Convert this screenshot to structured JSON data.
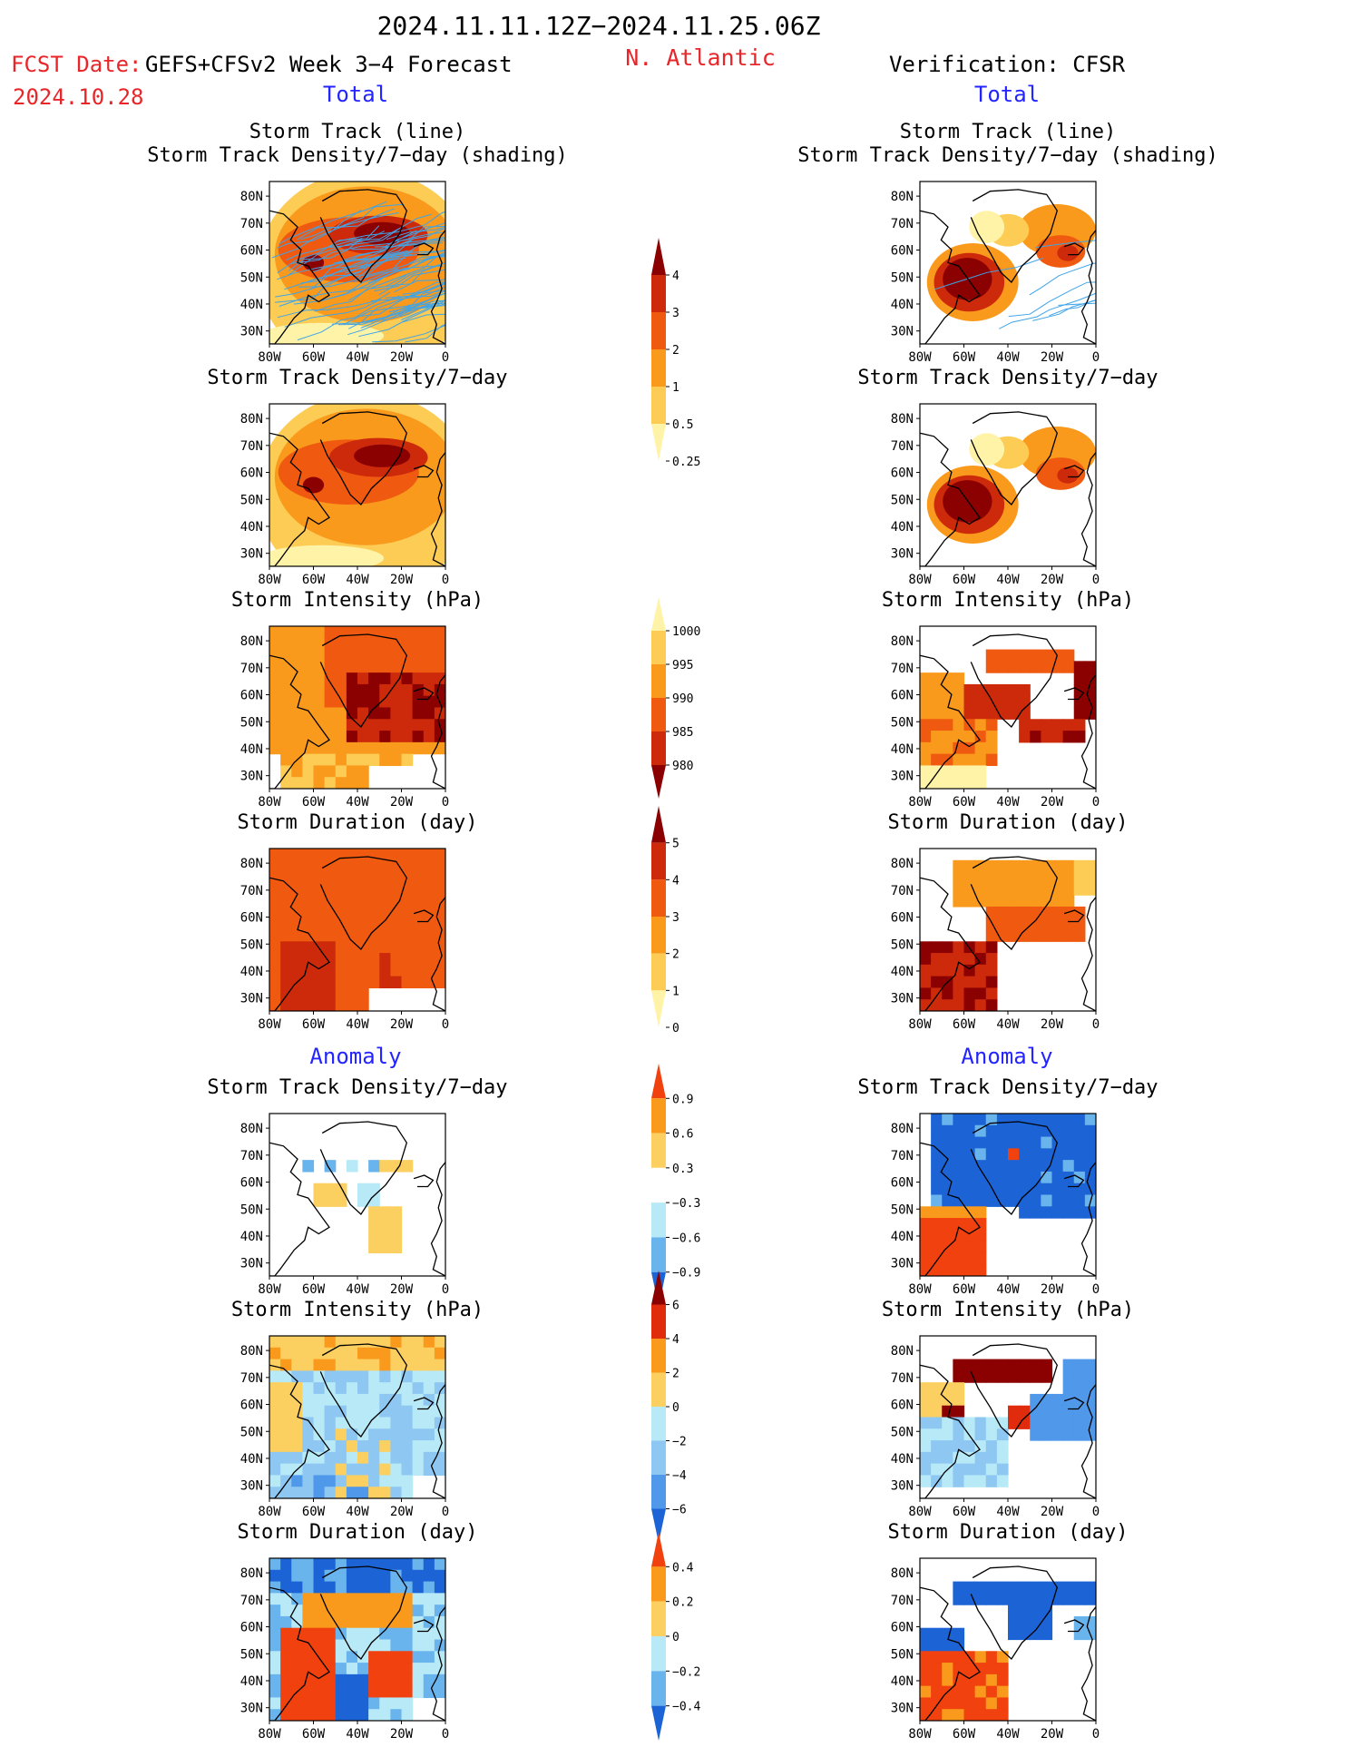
{
  "header": {
    "date_range": "2024.11.11.12Z−2024.11.25.06Z",
    "fcst_prefix": "FCST Date:",
    "fcst_model": "GEFS+CFSv2 Week 3−4 Forecast",
    "fcst_date": "2024.10.28",
    "region": "N. Atlantic",
    "verification": "Verification: CFSR"
  },
  "sections": {
    "total": "Total",
    "anomaly": "Anomaly"
  },
  "panel_titles": {
    "track_line": "Storm Track (line)",
    "track_shading": "Storm Track Density/7−day (shading)",
    "density": "Storm Track Density/7−day",
    "intensity": "Storm Intensity (hPa)",
    "duration": "Storm Duration (day)"
  },
  "map_axes": {
    "lat_labels": [
      "80N",
      "70N",
      "60N",
      "50N",
      "40N",
      "30N"
    ],
    "lon_labels": [
      "80W",
      "60W",
      "40W",
      "20W",
      "0"
    ]
  },
  "colorbars": {
    "density_total": {
      "labels": [
        "4",
        "3",
        "2",
        "1",
        "0.5",
        "0.25"
      ],
      "colors": [
        "#8b0000",
        "#cc2a0a",
        "#f05a10",
        "#f99a1c",
        "#fccc55",
        "#fff3a8"
      ]
    },
    "intensity_total": {
      "labels": [
        "1000",
        "995",
        "990",
        "985",
        "980"
      ],
      "colors": [
        "#fff3a8",
        "#fccc55",
        "#f99a1c",
        "#f05a10",
        "#cc2a0a",
        "#8b0000"
      ]
    },
    "duration_total": {
      "labels": [
        "5",
        "4",
        "3",
        "2",
        "1",
        "0"
      ],
      "colors": [
        "#8b0000",
        "#cc2a0a",
        "#f05a10",
        "#f99a1c",
        "#fccc55",
        "#fff3a8"
      ]
    },
    "density_anom": {
      "labels": [
        "0.9",
        "0.6",
        "0.3",
        "−0.3",
        "−0.6",
        "−0.9"
      ],
      "colors": [
        "#f0410e",
        "#f99a1c",
        "#fcd060",
        "#ffffff",
        "#b7e9f7",
        "#6ab4ee",
        "#1c64d6"
      ]
    },
    "intensity_anom": {
      "labels": [
        "6",
        "4",
        "2",
        "0",
        "−2",
        "−4",
        "−6"
      ],
      "colors": [
        "#8b0000",
        "#e02c0c",
        "#f99a1c",
        "#fcd060",
        "#b7e9f7",
        "#8ec8f2",
        "#4f98ea",
        "#1c64d6"
      ]
    },
    "duration_anom": {
      "labels": [
        "0.4",
        "0.2",
        "0",
        "−0.2",
        "−0.4"
      ],
      "colors": [
        "#f0410e",
        "#f99a1c",
        "#fcd060",
        "#b7e9f7",
        "#6ab4ee",
        "#1c64d6"
      ]
    }
  },
  "colors": {
    "header_red": "#e8262a",
    "section_blue": "#2424ff",
    "track_line": "#3fa4e8",
    "coast": "#000000"
  }
}
